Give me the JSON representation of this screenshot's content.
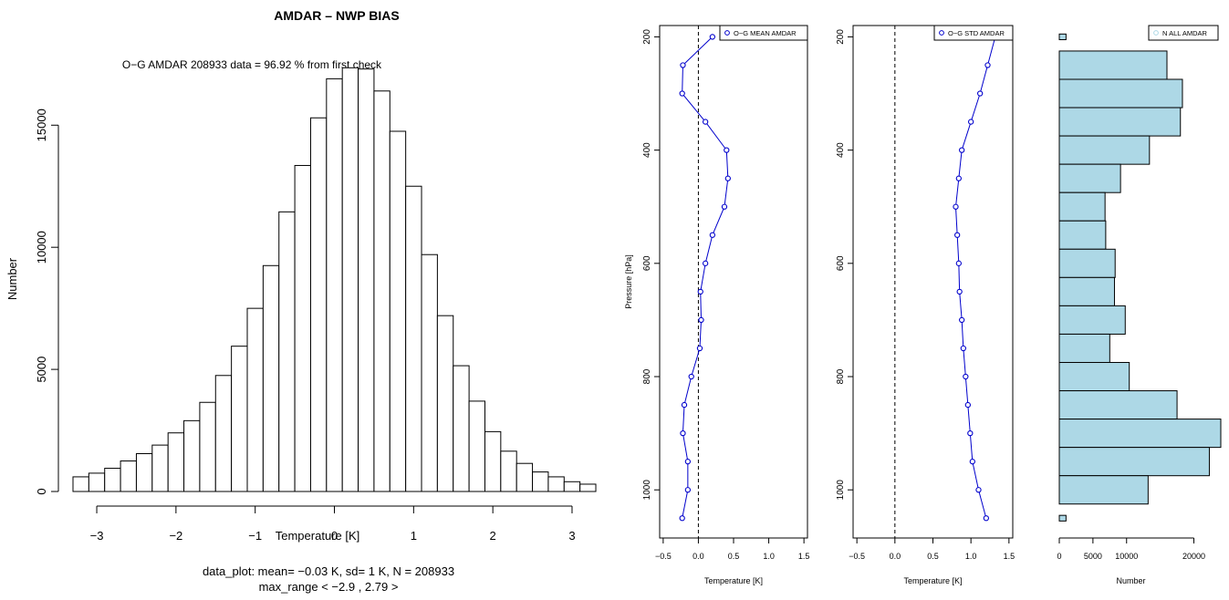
{
  "chart_data": [
    {
      "type": "bar",
      "title": "AMDAR – NWP BIAS",
      "subtitle": "O−G AMDAR  208933 data = 96.92 % from first check",
      "xlabel": "Temperature [K]",
      "ylabel": "Number",
      "xlim": [
        -3.3,
        3.15
      ],
      "ylim": [
        0,
        17400
      ],
      "xticks": [
        "−3",
        "−2",
        "−1",
        "0",
        "1",
        "2",
        "3"
      ],
      "yticks": [
        "0",
        "5000",
        "10000",
        "15000"
      ],
      "bin_width": 0.2,
      "bin_edges_start": -3.3,
      "values": [
        600,
        750,
        950,
        1250,
        1550,
        1900,
        2400,
        2900,
        3650,
        4750,
        5950,
        7500,
        9250,
        11450,
        13350,
        15300,
        16900,
        17350,
        17300,
        16400,
        14750,
        12500,
        9700,
        7200,
        5150,
        3700,
        2450,
        1650,
        1150,
        800,
        600,
        400,
        300
      ],
      "footer_line1": "data_plot: mean= −0.03 K, sd= 1 K, N = 208933",
      "footer_line2": "max_range < −2.9 , 2.79 >",
      "grid": false
    },
    {
      "type": "line",
      "legend": "O−G MEAN AMDAR",
      "legend_position": "top-right",
      "xlabel": "Temperature [K]",
      "ylabel": "Pressure [hPa]",
      "xlim": [
        -0.55,
        1.55
      ],
      "ylim": [
        1085,
        180
      ],
      "xticks": [
        "−0.5",
        "0.0",
        "0.5",
        "1.0",
        "1.5"
      ],
      "yticks": [
        "200",
        "400",
        "600",
        "800",
        "1000"
      ],
      "reference_line_x": 0,
      "color": "#0000cc",
      "x": [
        0.2,
        -0.22,
        -0.23,
        0.1,
        0.4,
        0.42,
        0.37,
        0.2,
        0.1,
        0.03,
        0.04,
        0.02,
        -0.1,
        -0.2,
        -0.22,
        -0.15,
        -0.15,
        -0.23
      ],
      "y": [
        200,
        250,
        300,
        350,
        400,
        450,
        500,
        550,
        600,
        650,
        700,
        750,
        800,
        850,
        900,
        950,
        1000,
        1050
      ]
    },
    {
      "type": "line",
      "legend": "O−G STD AMDAR",
      "legend_position": "top-right",
      "xlabel": "Temperature [K]",
      "xlim": [
        -0.55,
        1.55
      ],
      "ylim": [
        1085,
        180
      ],
      "xticks": [
        "−0.5",
        "0.0",
        "0.5",
        "1.0",
        "1.5"
      ],
      "yticks": [
        "200",
        "400",
        "600",
        "800",
        "1000"
      ],
      "reference_line_x": 0,
      "color": "#0000cc",
      "x": [
        1.32,
        1.22,
        1.12,
        1.0,
        0.88,
        0.84,
        0.8,
        0.82,
        0.84,
        0.85,
        0.88,
        0.9,
        0.93,
        0.96,
        0.99,
        1.02,
        1.1,
        1.2
      ],
      "y": [
        200,
        250,
        300,
        350,
        400,
        450,
        500,
        550,
        600,
        650,
        700,
        750,
        800,
        850,
        900,
        950,
        1000,
        1050
      ]
    },
    {
      "type": "bar",
      "orientation": "horizontal",
      "legend": "N ALL AMDAR",
      "legend_position": "top-right",
      "xlabel": "Number",
      "xlim": [
        0,
        24000
      ],
      "ylim": [
        1085,
        180
      ],
      "xticks": [
        "0",
        "5000",
        "10000",
        "20000"
      ],
      "color": "#add8e6",
      "categories": [
        200,
        250,
        300,
        350,
        400,
        450,
        500,
        550,
        600,
        650,
        700,
        750,
        800,
        850,
        900,
        950,
        1000,
        1050
      ],
      "values": [
        1000,
        16000,
        18300,
        18000,
        13400,
        9100,
        6800,
        6900,
        8300,
        8200,
        9800,
        7500,
        10400,
        17500,
        24000,
        22300,
        13200,
        1000
      ]
    }
  ]
}
